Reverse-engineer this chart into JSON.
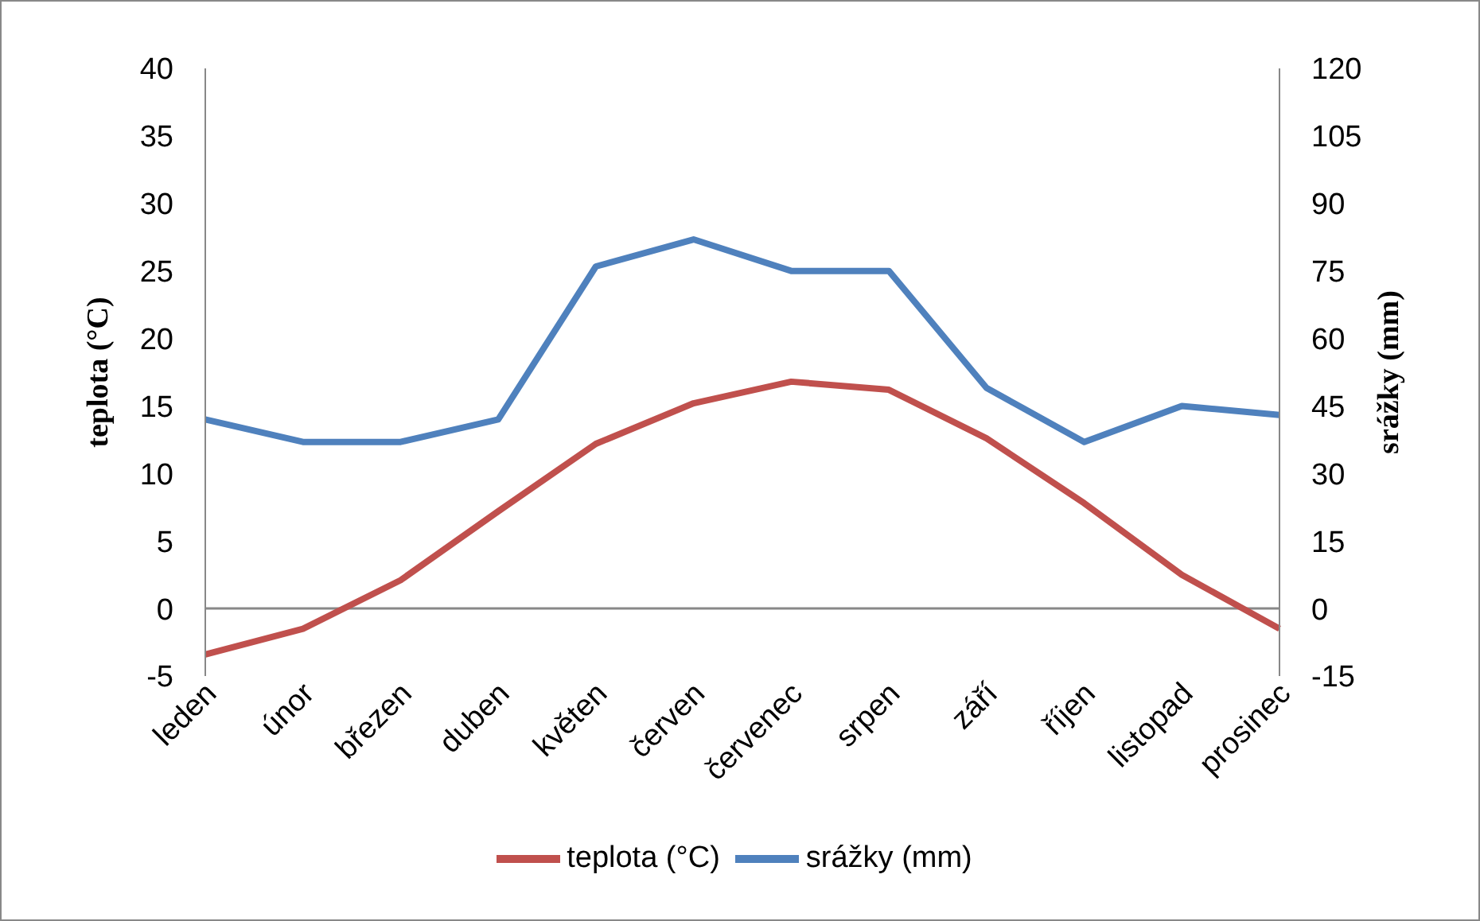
{
  "chart_data": {
    "type": "line",
    "categories": [
      "leden",
      "únor",
      "březen",
      "duben",
      "květen",
      "červen",
      "červenec",
      "srpen",
      "září",
      "říjen",
      "listopad",
      "prosinec"
    ],
    "series": [
      {
        "name": "teplota (°C)",
        "color": "#c0504d",
        "values": [
          -3.4,
          -1.5,
          2.1,
          7.2,
          12.2,
          15.2,
          16.8,
          16.2,
          12.6,
          7.8,
          2.5,
          -1.5
        ]
      },
      {
        "name": "srážky (mm)",
        "color": "#4f81bd",
        "axis": "y2",
        "values": [
          42,
          37,
          37,
          42,
          76,
          82,
          75,
          75,
          49,
          37,
          45,
          43
        ]
      }
    ],
    "ylabel": "teplota (°C)",
    "y2label": "srážky (mm)",
    "ylim": [
      -5,
      40
    ],
    "yticks": [
      -5,
      0,
      5,
      10,
      15,
      20,
      25,
      30,
      35,
      40
    ],
    "y2lim": [
      -15,
      120
    ],
    "y2ticks": [
      -15,
      0,
      15,
      30,
      45,
      60,
      75,
      90,
      105,
      120
    ],
    "legend": "bottom",
    "grid": false,
    "marker": "none",
    "line_style": "solid"
  }
}
